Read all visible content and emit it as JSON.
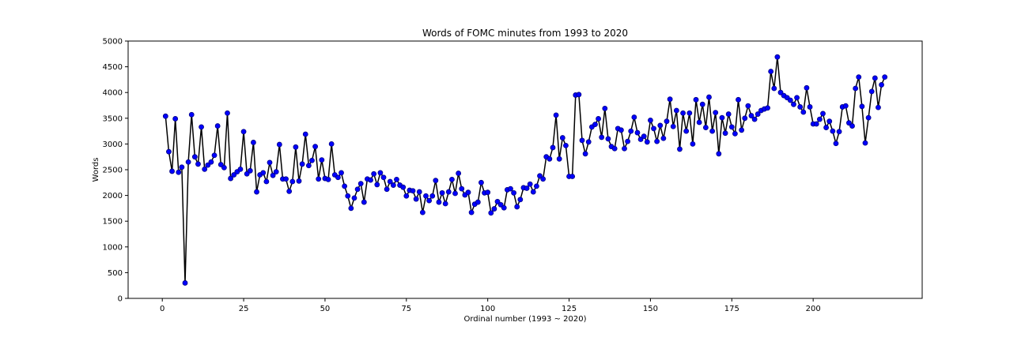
{
  "chart_data": {
    "type": "line",
    "title": "Words of FOMC minutes from 1993 to 2020",
    "xlabel": "Ordinal number (1993 ~ 2020)",
    "ylabel": "Words",
    "xlim": [
      -10.5,
      233.5
    ],
    "ylim": [
      0,
      5000
    ],
    "xticks": [
      0,
      25,
      50,
      75,
      100,
      125,
      150,
      175,
      200
    ],
    "yticks": [
      0,
      500,
      1000,
      1500,
      2000,
      2500,
      3000,
      3500,
      4000,
      4500,
      5000
    ],
    "grid": false,
    "line_color": "#000000",
    "marker_color": "#0000ff",
    "marker_edge_color": "#000080",
    "series": [
      {
        "x_start": 1,
        "values": [
          3540,
          2850,
          2470,
          3490,
          2450,
          2550,
          300,
          2650,
          3570,
          2750,
          2610,
          3330,
          2510,
          2590,
          2650,
          2780,
          3350,
          2600,
          2540,
          3600,
          2330,
          2400,
          2460,
          2510,
          3240,
          2420,
          2480,
          3030,
          2070,
          2400,
          2440,
          2270,
          2640,
          2390,
          2460,
          2990,
          2320,
          2320,
          2080,
          2270,
          2940,
          2280,
          2610,
          3190,
          2580,
          2680,
          2950,
          2320,
          2690,
          2330,
          2310,
          3000,
          2400,
          2350,
          2440,
          2180,
          1990,
          1750,
          1950,
          2120,
          2230,
          1870,
          2320,
          2300,
          2420,
          2210,
          2440,
          2350,
          2120,
          2270,
          2200,
          2310,
          2200,
          2160,
          1990,
          2100,
          2090,
          1930,
          2070,
          1670,
          1990,
          1900,
          1990,
          2290,
          1870,
          2050,
          1840,
          2070,
          2310,
          2040,
          2430,
          2130,
          2010,
          2060,
          1670,
          1830,
          1870,
          2250,
          2050,
          2060,
          1660,
          1740,
          1880,
          1820,
          1760,
          2110,
          2130,
          2050,
          1780,
          1920,
          2150,
          2140,
          2220,
          2070,
          2180,
          2380,
          2320,
          2750,
          2710,
          2930,
          3560,
          2710,
          3120,
          2970,
          2370,
          2370,
          3950,
          3960,
          3070,
          2810,
          3040,
          3330,
          3380,
          3490,
          3130,
          3690,
          3100,
          2950,
          2910,
          3300,
          3270,
          2910,
          3050,
          3250,
          3520,
          3220,
          3090,
          3150,
          3040,
          3460,
          3300,
          3050,
          3360,
          3110,
          3440,
          3870,
          3340,
          3650,
          2900,
          3600,
          3250,
          3600,
          3000,
          3860,
          3420,
          3770,
          3320,
          3910,
          3250,
          3610,
          2810,
          3510,
          3210,
          3580,
          3330,
          3200,
          3860,
          3270,
          3500,
          3740,
          3550,
          3480,
          3580,
          3650,
          3680,
          3700,
          4410,
          4080,
          4690,
          4000,
          3940,
          3900,
          3850,
          3770,
          3900,
          3720,
          3620,
          4090,
          3720,
          3390,
          3390,
          3480,
          3590,
          3320,
          3440,
          3250,
          3010,
          3240,
          3720,
          3740,
          3410,
          3350,
          4080,
          4300,
          3730,
          3020,
          3510,
          4020,
          4280,
          3710,
          4150,
          4300
        ]
      }
    ]
  }
}
